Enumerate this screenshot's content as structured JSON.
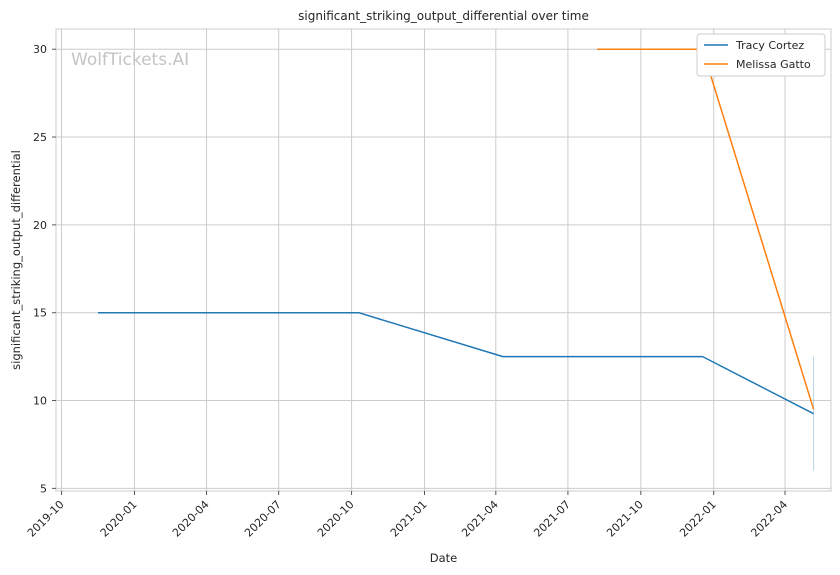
{
  "chart_data": {
    "type": "line",
    "title": "significant_striking_output_differential over time",
    "xlabel": "Date",
    "ylabel": "significant_striking_output_differential",
    "watermark": "WolfTickets.AI",
    "x_ticks": [
      "2019-10",
      "2020-01",
      "2020-04",
      "2020-07",
      "2020-10",
      "2021-01",
      "2021-04",
      "2021-07",
      "2021-10",
      "2022-01",
      "2022-04"
    ],
    "y_ticks": [
      5,
      10,
      15,
      20,
      25,
      30
    ],
    "xlim": [
      "2019-09-24",
      "2022-05-29"
    ],
    "ylim": [
      4.85,
      31.15
    ],
    "grid": true,
    "legend_position": "top-right",
    "series": [
      {
        "name": "Tracy Cortez",
        "color": "#1f77b4",
        "points": [
          {
            "x": "2019-11-16",
            "y": 15
          },
          {
            "x": "2020-10-10",
            "y": 15
          },
          {
            "x": "2021-04-10",
            "y": 12.5
          },
          {
            "x": "2021-12-18",
            "y": 12.5
          },
          {
            "x": "2022-05-07",
            "y": 9.25
          }
        ]
      },
      {
        "name": "Melissa Gatto",
        "color": "#ff7f0e",
        "points": [
          {
            "x": "2021-08-07",
            "y": 30
          },
          {
            "x": "2021-12-18",
            "y": 30
          },
          {
            "x": "2022-05-07",
            "y": 9.5
          }
        ]
      }
    ],
    "bands": [
      {
        "series": "Tracy Cortez",
        "x": "2022-05-07",
        "low": 6,
        "high": 12.5
      }
    ]
  }
}
